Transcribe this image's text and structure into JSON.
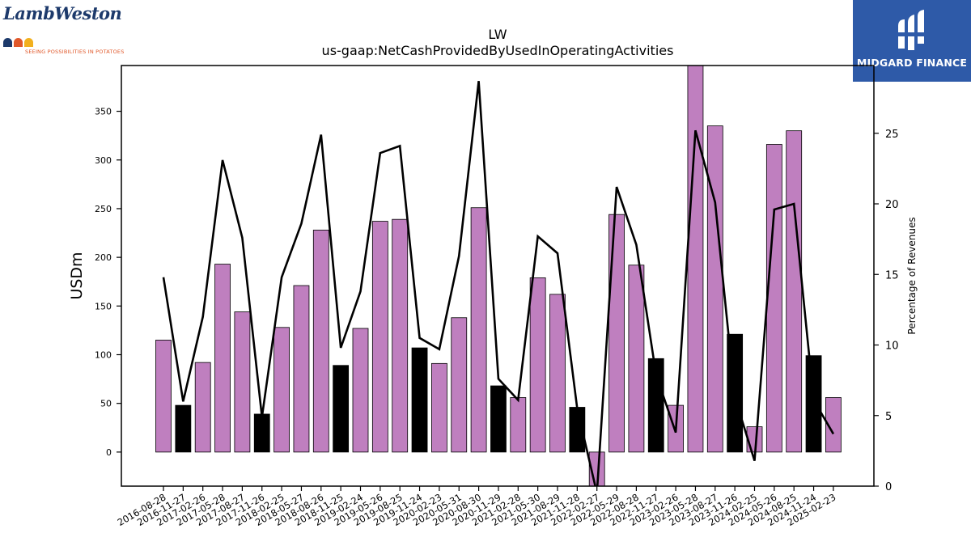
{
  "brand": {
    "left_logo_name": "LambWeston",
    "left_logo_tagline": "SEEING POSSIBILITIES IN POTATOES",
    "right_logo_name": "MIDGARD FINANCE"
  },
  "chart_data": {
    "type": "bar",
    "title": "LW",
    "subtitle": "us-gaap:NetCashProvidedByUsedInOperatingActivities",
    "ylabel": "USDm",
    "y2label": "Percentage of Revenues",
    "ylim": [
      -35,
      397
    ],
    "y2lim": [
      0,
      29.8
    ],
    "yticks": [
      0,
      50,
      100,
      150,
      200,
      250,
      300,
      350
    ],
    "y2ticks": [
      0,
      5,
      10,
      15,
      20,
      25
    ],
    "grid": false,
    "colors": {
      "regular": "#bf7fbf",
      "highlight": "#000000",
      "line": "#000000"
    },
    "categories": [
      "2016-08-28",
      "2016-11-27",
      "2017-02-26",
      "2017-05-28",
      "2017-08-27",
      "2017-11-26",
      "2018-02-25",
      "2018-05-27",
      "2018-08-26",
      "2018-11-25",
      "2019-02-24",
      "2019-05-26",
      "2019-08-25",
      "2019-11-24",
      "2020-02-23",
      "2020-05-31",
      "2020-08-30",
      "2020-11-29",
      "2021-02-28",
      "2021-05-30",
      "2021-08-29",
      "2021-11-28",
      "2022-02-27",
      "2022-05-29",
      "2022-08-28",
      "2022-11-27",
      "2023-02-26",
      "2023-05-28",
      "2023-08-27",
      "2023-11-26",
      "2024-02-25",
      "2024-05-26",
      "2024-08-25",
      "2024-11-24",
      "2025-02-23"
    ],
    "series": [
      {
        "kind": "bar",
        "values": [
          115,
          48,
          92,
          193,
          144,
          39,
          128,
          171,
          228,
          89,
          127,
          237,
          239,
          107,
          91,
          138,
          251,
          68,
          56,
          179,
          162,
          46,
          -35,
          244,
          192,
          96,
          48,
          397,
          335,
          121,
          26,
          316,
          330,
          99,
          56
        ],
        "highlight": [
          false,
          true,
          false,
          false,
          false,
          true,
          false,
          false,
          false,
          true,
          false,
          false,
          false,
          true,
          false,
          false,
          false,
          true,
          false,
          false,
          false,
          true,
          false,
          false,
          false,
          true,
          false,
          false,
          false,
          true,
          false,
          false,
          false,
          true,
          false
        ]
      },
      {
        "kind": "line",
        "axis": "right",
        "values": [
          14.8,
          6.0,
          12.0,
          23.1,
          17.6,
          4.9,
          14.8,
          18.6,
          24.9,
          9.8,
          13.8,
          23.6,
          24.1,
          10.5,
          9.7,
          16.3,
          28.7,
          7.6,
          6.1,
          17.7,
          16.5,
          5.5,
          -0.5,
          21.2,
          17.1,
          7.9,
          3.8,
          25.2,
          20.1,
          6.3,
          1.8,
          19.6,
          20.0,
          6.1,
          3.7
        ]
      }
    ]
  }
}
